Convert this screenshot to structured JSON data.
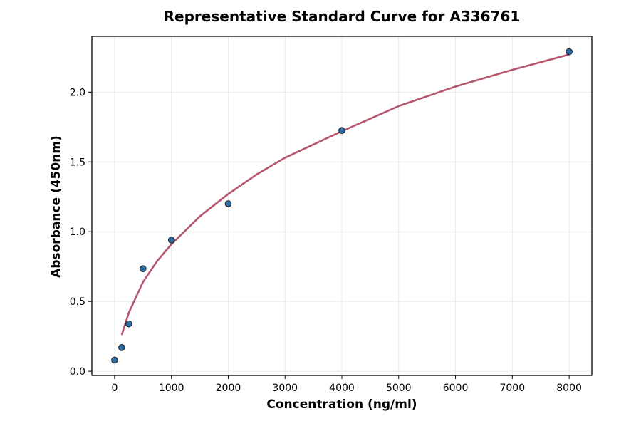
{
  "chart_data": {
    "type": "scatter",
    "title": "Representative Standard Curve for A336761",
    "xlabel": "Concentration (ng/ml)",
    "ylabel": "Absorbance (450nm)",
    "xlim": [
      -400,
      8400
    ],
    "ylim": [
      -0.03,
      2.4
    ],
    "x_ticks": [
      0,
      1000,
      2000,
      3000,
      4000,
      5000,
      6000,
      7000,
      8000
    ],
    "y_ticks": [
      0.0,
      0.5,
      1.0,
      1.5,
      2.0
    ],
    "x_tick_labels": [
      "0",
      "1000",
      "2000",
      "3000",
      "4000",
      "5000",
      "6000",
      "7000",
      "8000"
    ],
    "y_tick_labels": [
      "0.0",
      "0.5",
      "1.0",
      "1.5",
      "2.0"
    ],
    "grid": true,
    "series": [
      {
        "kind": "points",
        "x": [
          0,
          125,
          250,
          500,
          1000,
          2000,
          4000,
          8000
        ],
        "y": [
          0.08,
          0.17,
          0.34,
          0.735,
          0.94,
          1.2,
          1.725,
          2.29
        ],
        "color": "#2b6ea8"
      },
      {
        "kind": "fit",
        "x": [
          125,
          250,
          500,
          750,
          1000,
          1500,
          2000,
          2500,
          3000,
          4000,
          5000,
          6000,
          7000,
          8000
        ],
        "y": [
          0.26,
          0.42,
          0.64,
          0.79,
          0.91,
          1.11,
          1.27,
          1.41,
          1.53,
          1.72,
          1.9,
          2.04,
          2.16,
          2.27
        ],
        "color": "#b5576c"
      }
    ]
  }
}
